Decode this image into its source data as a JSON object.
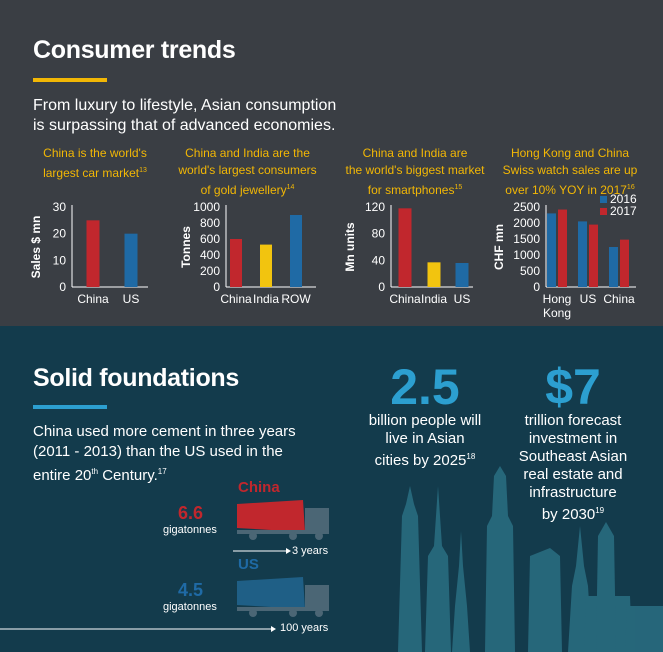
{
  "consumer": {
    "title": "Consumer trends",
    "lead_line1": "From luxury to lifestyle, Asian consumption",
    "lead_line2": "is surpassing that of advanced economies."
  },
  "captions": [
    {
      "lines": [
        "China is the world's",
        "largest car market"
      ],
      "sup": "13"
    },
    {
      "lines": [
        "China and India are the",
        "world's largest consumers",
        "of gold jewellery"
      ],
      "sup": "14"
    },
    {
      "lines": [
        "China and India are",
        "the world's biggest market",
        "for smartphones"
      ],
      "sup": "15"
    },
    {
      "lines": [
        "Hong Kong and China",
        "Swiss watch sales are up",
        "over 10% YOY in 2017"
      ],
      "sup": "16"
    }
  ],
  "chart_data": [
    {
      "type": "bar",
      "ylabel": "Sales $ mn",
      "categories": [
        "China",
        "US"
      ],
      "values": [
        25,
        20
      ],
      "colors": [
        "#c1272d",
        "#1f6aa5"
      ],
      "ylim": [
        0,
        30
      ],
      "yticks": [
        "0",
        "10",
        "20",
        "30"
      ]
    },
    {
      "type": "bar",
      "ylabel": "Tonnes",
      "categories": [
        "China",
        "India",
        "ROW"
      ],
      "values": [
        600,
        530,
        900
      ],
      "colors": [
        "#c1272d",
        "#f2c40f",
        "#1f6aa5"
      ],
      "ylim": [
        0,
        1000
      ],
      "yticks": [
        "0",
        "200",
        "400",
        "600",
        "800",
        "1000"
      ]
    },
    {
      "type": "bar",
      "ylabel": "Mn units",
      "categories": [
        "China",
        "India",
        "US"
      ],
      "values": [
        118,
        37,
        36
      ],
      "colors": [
        "#c1272d",
        "#f2c40f",
        "#1f6aa5"
      ],
      "ylim": [
        0,
        120
      ],
      "yticks": [
        "0",
        "40",
        "80",
        "120"
      ]
    },
    {
      "type": "bar",
      "ylabel": "CHF mn",
      "categories": [
        "Hong Kong",
        "US",
        "China"
      ],
      "series": [
        {
          "name": "2016",
          "values": [
            2300,
            2050,
            1250
          ],
          "color": "#1f6aa5"
        },
        {
          "name": "2017",
          "values": [
            2420,
            1950,
            1480
          ],
          "color": "#c1272d"
        }
      ],
      "ylim": [
        0,
        2500
      ],
      "yticks": [
        "0",
        "500",
        "1000",
        "1500",
        "2000",
        "2500"
      ],
      "legend": "top-right"
    }
  ],
  "solid": {
    "title": "Solid foundations",
    "lead_lines": [
      "China used more cement in three years",
      "(2011 - 2013) than the US used in the"
    ],
    "lead_last": "entire 20",
    "lead_th": "th",
    "lead_end": " Century.",
    "lead_sup": "17",
    "china_label": "China",
    "china_value": "6.6",
    "china_unit": "gigatonnes",
    "china_time": "3 years",
    "us_label": "US",
    "us_value": "4.5",
    "us_unit": "gigatonnes",
    "us_time": "100 years"
  },
  "stat1": {
    "value": "2.5",
    "lines": [
      "billion people will",
      "live in Asian"
    ],
    "last": "cities by 2025",
    "sup": "18"
  },
  "stat2": {
    "value": "$7",
    "lines": [
      "trillion forecast",
      "investment in",
      "Southeast Asian",
      "real estate and",
      "infrastructure"
    ],
    "last": "by 2030",
    "sup": "19"
  }
}
